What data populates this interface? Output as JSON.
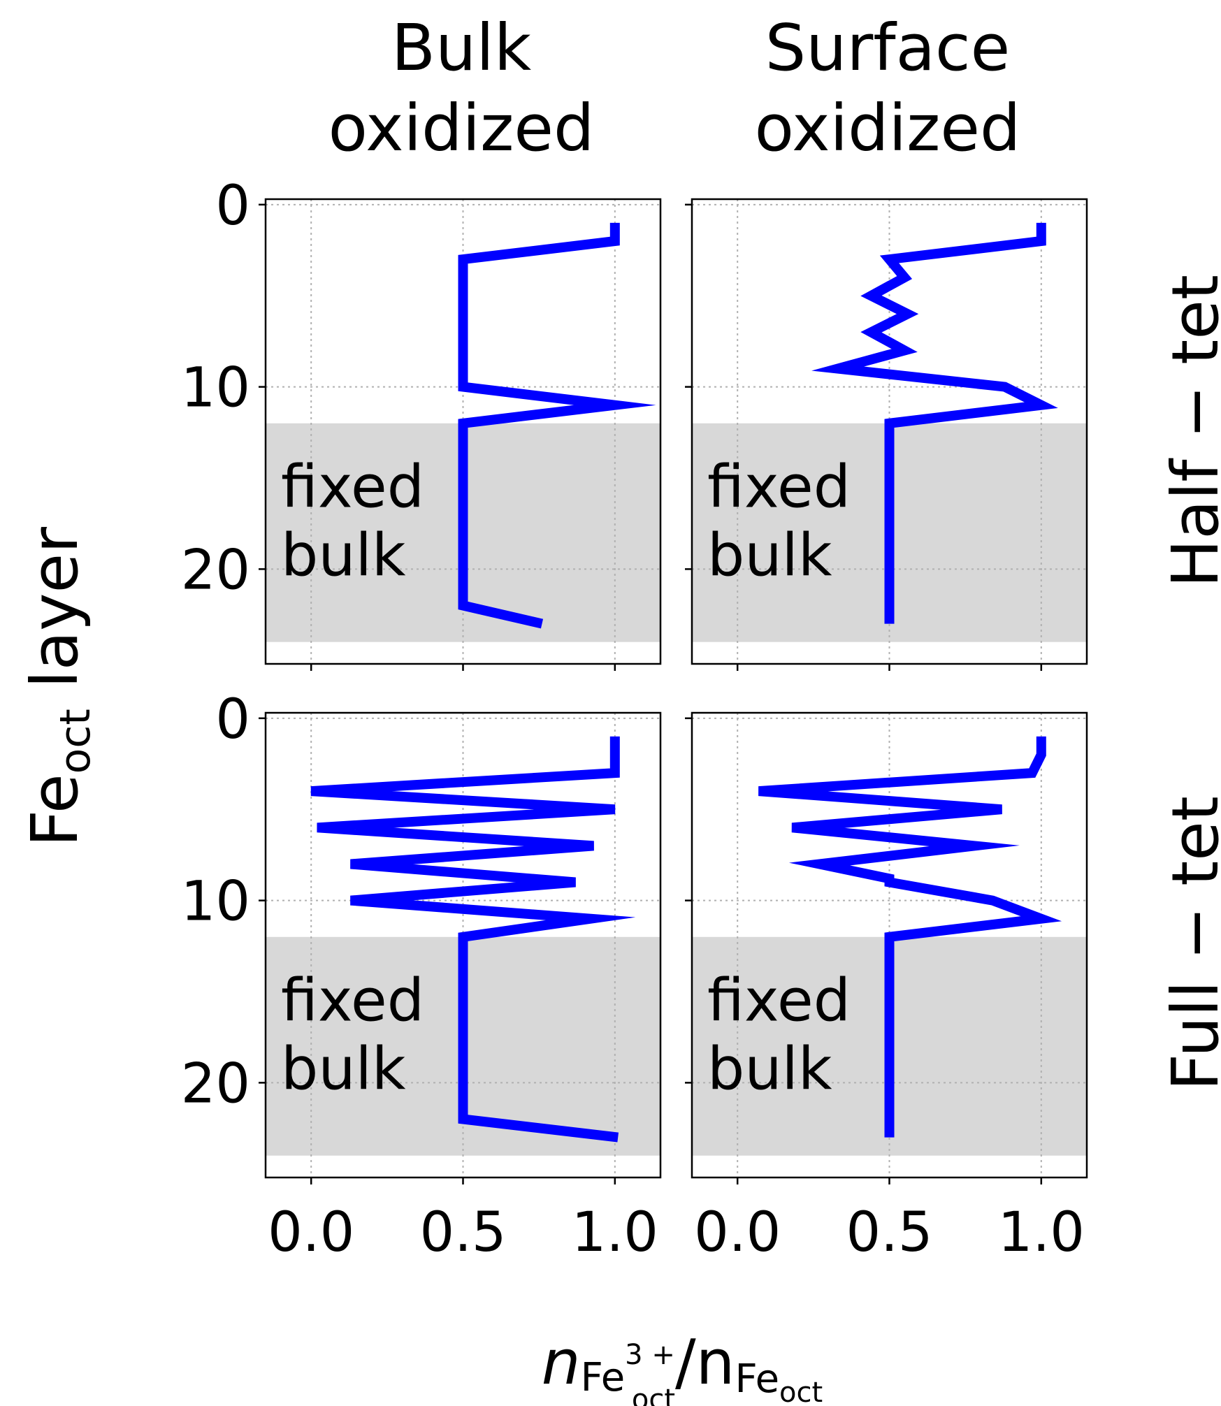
{
  "figure": {
    "col_titles": [
      [
        "Bulk",
        "oxidized"
      ],
      [
        "Surface",
        "oxidized"
      ]
    ],
    "row_titles": [
      "Half − tet",
      "Full − tet"
    ],
    "ylabel": {
      "base": "Fe",
      "sub": "oct",
      "rest": " layer"
    },
    "xlabel": {
      "n1": "n",
      "fe1": "Fe",
      "sup1": "3 +",
      "sub1": "oct",
      "slash": "/n",
      "fe2": "Fe",
      "sub2": "oct"
    },
    "fixed_label": [
      "fixed",
      "bulk"
    ],
    "colors": {
      "line": "#0000ff",
      "fixed_band": "#d8d8d8",
      "grid": "#b0b0b0",
      "fixed_text": "#ffffff"
    }
  },
  "chart_data": [
    {
      "type": "line",
      "panel": "Bulk oxidized / Half − tet",
      "x": [
        1.0,
        1.0,
        0.5,
        0.5,
        0.5,
        0.5,
        0.5,
        0.5,
        0.5,
        0.5,
        1.0,
        0.5,
        0.5,
        0.5,
        0.5,
        0.5,
        0.5,
        0.5,
        0.5,
        0.5,
        0.5,
        0.5,
        0.76
      ],
      "y": [
        1,
        2,
        3,
        4,
        5,
        6,
        7,
        8,
        9,
        10,
        11,
        12,
        13,
        14,
        15,
        16,
        17,
        18,
        19,
        20,
        21,
        22,
        23
      ],
      "xlim": [
        -0.15,
        1.15
      ],
      "ylim": [
        25.2,
        -0.3
      ],
      "xticks": [
        "0.0",
        "0.5",
        "1.0"
      ],
      "yticks": [
        "0",
        "10",
        "20"
      ],
      "fixed_region": [
        12,
        24
      ],
      "grid": true
    },
    {
      "type": "line",
      "panel": "Surface oxidized / Half − tet",
      "x": [
        1.0,
        1.0,
        0.5,
        0.55,
        0.44,
        0.56,
        0.44,
        0.55,
        0.33,
        0.88,
        1.0,
        0.5,
        0.5,
        0.5,
        0.5,
        0.5,
        0.5,
        0.5,
        0.5,
        0.5,
        0.5,
        0.5,
        0.5
      ],
      "y": [
        1,
        2,
        3,
        4,
        5,
        6,
        7,
        8,
        9,
        10,
        11,
        12,
        13,
        14,
        15,
        16,
        17,
        18,
        19,
        20,
        21,
        22,
        23
      ],
      "xlim": [
        -0.15,
        1.15
      ],
      "ylim": [
        25.2,
        -0.3
      ],
      "xticks": [
        "0.0",
        "0.5",
        "1.0"
      ],
      "yticks": [
        "0",
        "10",
        "20"
      ],
      "fixed_region": [
        12,
        24
      ],
      "grid": true
    },
    {
      "type": "line",
      "panel": "Bulk oxidized / Full − tet",
      "x": [
        1.0,
        1.0,
        1.0,
        0.0,
        1.0,
        0.02,
        0.93,
        0.13,
        0.87,
        0.13,
        0.92,
        0.5,
        0.5,
        0.5,
        0.5,
        0.5,
        0.5,
        0.5,
        0.5,
        0.5,
        0.5,
        0.5,
        1.01
      ],
      "y": [
        1,
        2,
        3,
        4,
        5,
        6,
        7,
        8,
        9,
        10,
        11,
        12,
        13,
        14,
        15,
        16,
        17,
        18,
        19,
        20,
        21,
        22,
        23
      ],
      "xlim": [
        -0.15,
        1.15
      ],
      "ylim": [
        25.2,
        -0.3
      ],
      "xticks": [
        "0.0",
        "0.5",
        "1.0"
      ],
      "yticks": [
        "0",
        "10",
        "20"
      ],
      "fixed_region": [
        12,
        24
      ],
      "grid": true
    },
    {
      "type": "line",
      "panel": "Surface oxidized / Full − tet",
      "x": [
        1.0,
        1.0,
        0.97,
        0.07,
        0.87,
        0.18,
        0.78,
        0.27,
        0.5,
        0.5,
        0.84,
        1.0,
        0.5,
        0.5,
        0.5,
        0.5,
        0.5,
        0.5,
        0.5,
        0.5,
        0.5,
        0.5,
        0.5,
        0.5
      ],
      "y": [
        1,
        2,
        3,
        4,
        5,
        6,
        7,
        8,
        8.8,
        9,
        10,
        11,
        12,
        13,
        14,
        15,
        16,
        17,
        18,
        19,
        20,
        21,
        22,
        23
      ],
      "xlim": [
        -0.15,
        1.15
      ],
      "ylim": [
        25.2,
        -0.3
      ],
      "xticks": [
        "0.0",
        "0.5",
        "1.0"
      ],
      "yticks": [
        "0",
        "10",
        "20"
      ],
      "fixed_region": [
        12,
        24
      ],
      "grid": true
    }
  ]
}
